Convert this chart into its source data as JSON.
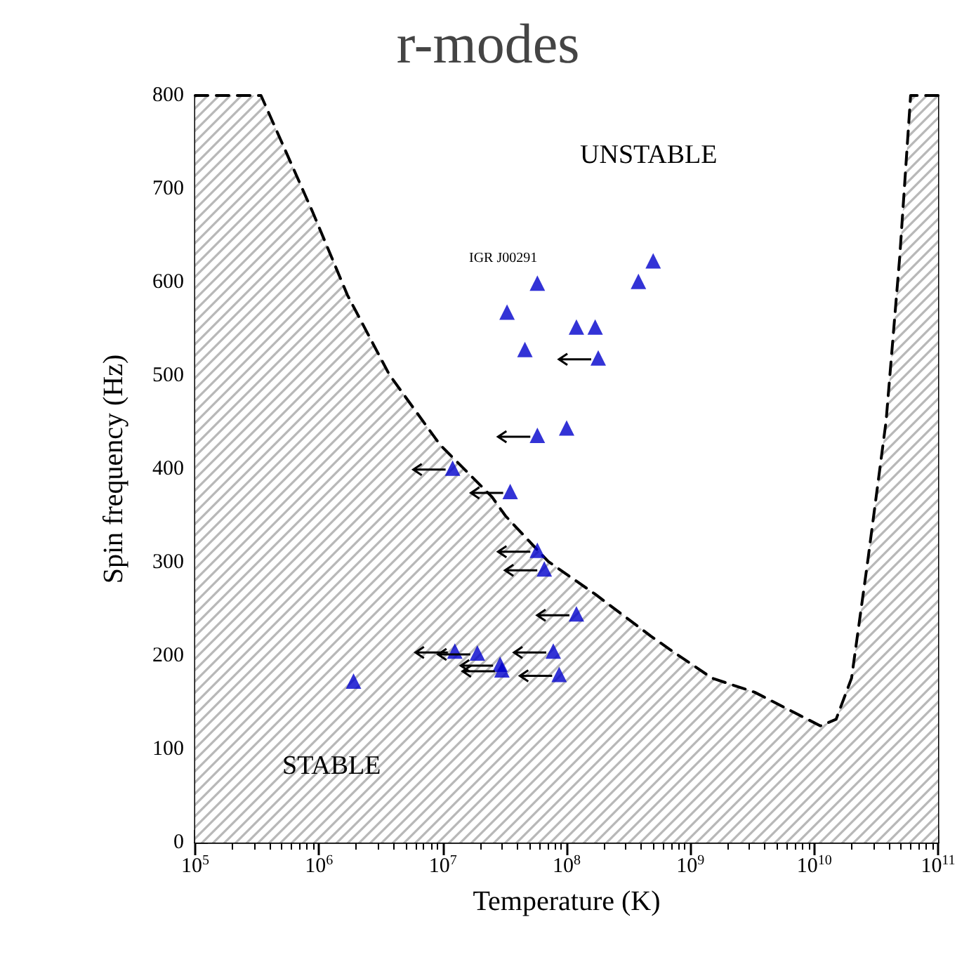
{
  "chart_data": {
    "type": "scatter",
    "title": "r-modes",
    "xlabel": "Temperature (K)",
    "ylabel": "Spin frequency (Hz)",
    "log": "x",
    "xlim": [
      100000,
      100000000000
    ],
    "ylim": [
      0,
      800
    ],
    "xticks": [
      {
        "value": 100000,
        "label": "10$^{5}$"
      },
      {
        "value": 1000000,
        "label": "10$^{6}$"
      },
      {
        "value": 10000000,
        "label": "10$^{7}$"
      },
      {
        "value": 100000000,
        "label": "10$^{8}$"
      },
      {
        "value": 1000000000,
        "label": "10$^{9}$"
      },
      {
        "value": 10000000000,
        "label": "10$^{10}$"
      },
      {
        "value": 100000000000,
        "label": "10$^{11}$"
      }
    ],
    "yticks": [
      0,
      100,
      200,
      300,
      400,
      500,
      600,
      700,
      800
    ],
    "grid": false,
    "series": [
      {
        "type": "area",
        "color": "#000000",
        "marker": "none",
        "line_style": "dashed",
        "x": [
          100000,
          340000,
          890000,
          1700000,
          3700000,
          9500000,
          25000000,
          32000000,
          71000000,
          170000000,
          480000000,
          750000000,
          1500000000,
          3300000000,
          11200000000,
          15000000000,
          20000000000,
          27000000000,
          38000000000,
          49000000000,
          60000000000,
          100000000000
        ],
        "values": [
          800,
          800,
          675,
          586,
          501,
          426,
          370,
          350,
          301,
          266,
          221,
          203,
          176,
          161,
          125,
          132,
          176,
          301,
          451,
          627,
          800,
          800
        ]
      },
      {
        "color": "#0000cc",
        "marker": "triangle",
        "x": [
          1900000,
          58000000,
          33000000,
          46000000,
          120000000,
          170000000,
          380000000,
          500000000,
          100000000
        ],
        "values": [
          173,
          599,
          568,
          528,
          552,
          552,
          601,
          623,
          444
        ]
      },
      {
        "color": "#0000cc",
        "marker": "triangle",
        "x": [
          12000000,
          35000000,
          180000000,
          58000000,
          58000000,
          66000000,
          120000000,
          78000000,
          87000000,
          12500000,
          19000000,
          29000000,
          30000000
        ],
        "values": [
          401,
          376,
          519,
          436,
          313,
          293,
          245,
          205,
          180,
          205,
          203,
          191,
          185
        ]
      }
    ],
    "annotations": [
      "UNSTABLE",
      "STABLE",
      "IGR J00291"
    ]
  }
}
